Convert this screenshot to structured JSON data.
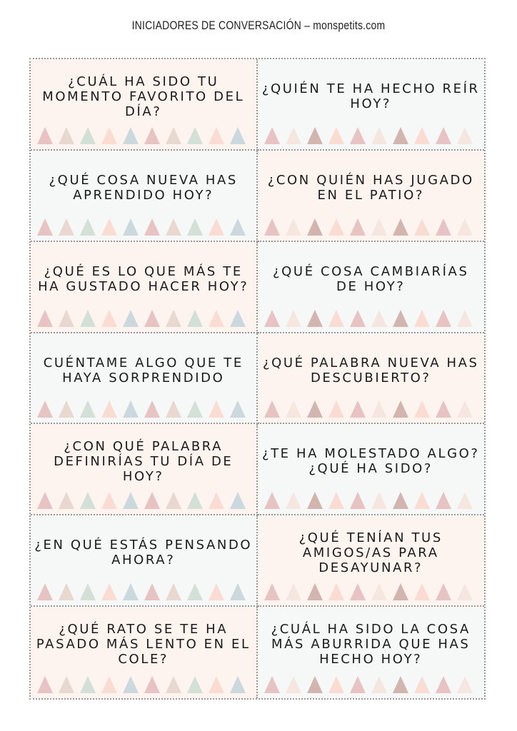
{
  "header": {
    "title": "INICIADORES DE CONVERSACIÓN – monspetits.com"
  },
  "colors": {
    "card_pink": "#fdf4f0",
    "card_gray": "#f6f8f7",
    "left_triangles": [
      "#e8c3c3",
      "#e8d8cf",
      "#d2e0d8",
      "#fadcd3",
      "#cbd9df",
      "#e8c3c3",
      "#e8d8cf",
      "#d2e0d8",
      "#fadcd3",
      "#cbd9df"
    ],
    "right_triangles": [
      "#e8c3c3",
      "#f5e6e0",
      "#d3b5b0",
      "#fadcd3",
      "#e8c3c3",
      "#f5e6e0",
      "#d3b5b0",
      "#fadcd3",
      "#e8c3c3",
      "#f5e6e0"
    ]
  },
  "cards": [
    "¿Cuál ha sido tu momento favorito del día?",
    "¿Quién te ha hecho reír hoy?",
    "¿Qué cosa nueva has aprendido hoy?",
    "¿Con quién has jugado en el patio?",
    "¿Qué es lo que más te ha gustado hacer hoy?",
    "¿Qué cosa cambiarías de hoy?",
    "Cuéntame algo que te haya sorprendido",
    "¿Qué palabra nueva has descubierto?",
    "¿Con qué palabra definirías tu día de hoy?",
    "¿Te ha molestado algo? ¿Qué ha sido?",
    "¿En qué estás pensando ahora?",
    "¿Qué tenían tus amigos/as para desayunar?",
    "¿Qué rato se te ha pasado más lento en el cole?",
    "¿Cuál ha sido la cosa más aburrida que has hecho hoy?"
  ]
}
